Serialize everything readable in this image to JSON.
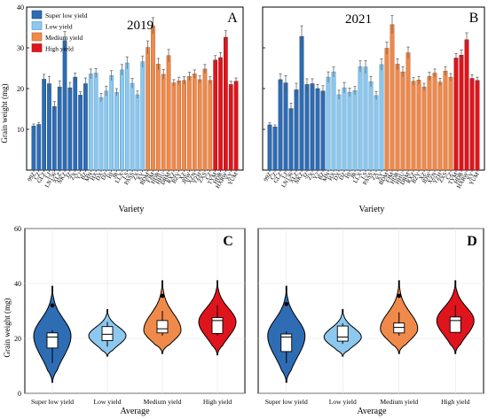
{
  "legend": {
    "items": [
      {
        "label": "Super low yield",
        "color": "#2e6db4"
      },
      {
        "label": "Low yield",
        "color": "#8cc8ef"
      },
      {
        "label": "Medium yield",
        "color": "#f08a4b"
      },
      {
        "label": "High yield",
        "color": "#e0141c"
      }
    ]
  },
  "panels": {
    "A": {
      "letter": "A",
      "year": "2019"
    },
    "B": {
      "letter": "B",
      "year": "2021"
    },
    "C": {
      "letter": "C"
    },
    "D": {
      "letter": "D"
    }
  },
  "top_ylabel": "Grain weight (mg)",
  "top_xlabel": "Variety",
  "bottom_ylabel": "Grain weight (mg)",
  "bottom_xlabel": "Average",
  "chart_data": [
    {
      "panel": "A",
      "type": "bar",
      "title": "2019",
      "xlabel": "Variety",
      "ylabel": "Grain weight (mg)",
      "ylim": [
        0,
        40
      ],
      "yticks": [
        10,
        20,
        30,
        40
      ],
      "categories": [
        "99Z",
        "CZ",
        "GLZ",
        "LJ",
        "LN136",
        "XLZ",
        "NKZ",
        "JZ",
        "ZX",
        "Y2",
        "BZ",
        "MN",
        "HX",
        "DX",
        "DZ",
        "HI",
        "JR",
        "LLX",
        "LS",
        "PASS",
        "ZX",
        "XY",
        "BDM",
        "FJM",
        "HDR",
        "HHU",
        "DRM",
        "RXZ",
        "BZY",
        "XZ",
        "JDW",
        "XZN",
        "YZH",
        "ZXS",
        "CZ",
        "TYM",
        "HDR",
        "HXRW",
        "XY",
        "YUM"
      ],
      "category_groups": [
        0,
        0,
        0,
        0,
        0,
        0,
        0,
        0,
        0,
        0,
        0,
        1,
        1,
        1,
        1,
        1,
        1,
        1,
        1,
        1,
        1,
        1,
        2,
        2,
        2,
        2,
        2,
        2,
        2,
        2,
        2,
        2,
        2,
        2,
        2,
        3,
        3,
        3,
        3,
        3
      ],
      "values": [
        10.8,
        11.2,
        22.3,
        21.2,
        15.6,
        20.4,
        31.8,
        20.2,
        22.8,
        18.4,
        21.2,
        23.6,
        23.8,
        17.8,
        19.4,
        23.2,
        19.1,
        24.6,
        26.3,
        21.3,
        18.5,
        26.6,
        30.1,
        35.4,
        26.0,
        23.5,
        28.1,
        21.4,
        21.9,
        22.0,
        23.0,
        23.6,
        22.2,
        24.8,
        22.0,
        27.0,
        27.6,
        32.6,
        21.0,
        21.8
      ],
      "errors": [
        0.5,
        0.5,
        1.2,
        1.8,
        1.2,
        1.5,
        2.2,
        1.3,
        1.0,
        0.8,
        1.4,
        1.2,
        1.1,
        1.0,
        1.2,
        1.2,
        0.9,
        1.3,
        1.5,
        1.2,
        0.9,
        1.4,
        1.6,
        2.0,
        1.4,
        1.2,
        1.5,
        0.8,
        0.9,
        0.9,
        1.0,
        1.0,
        0.9,
        1.1,
        0.9,
        1.1,
        1.2,
        1.6,
        0.8,
        0.8
      ]
    },
    {
      "panel": "B",
      "type": "bar",
      "title": "2021",
      "xlabel": "Variety",
      "ylabel": "",
      "ylim": [
        0,
        40
      ],
      "yticks": [
        10,
        20,
        30,
        40
      ],
      "categories": [
        "99Z",
        "CZ",
        "GLZ",
        "LJ",
        "LN136",
        "XLZ",
        "NKZ",
        "JZ",
        "ZX",
        "Y2",
        "BZ",
        "MN",
        "HX",
        "DX",
        "DZ",
        "HI",
        "JR",
        "LLX",
        "LS",
        "PASS",
        "ZX",
        "XY",
        "BDM",
        "FJM",
        "HDR",
        "HHU",
        "DRM",
        "RXZ",
        "BZY",
        "XZ",
        "JDW",
        "XZN",
        "YZH",
        "ZXS",
        "CZ",
        "TYM",
        "HDR",
        "HXRW",
        "XY",
        "YUM"
      ],
      "category_groups": [
        0,
        0,
        0,
        0,
        0,
        0,
        0,
        0,
        0,
        0,
        0,
        1,
        1,
        1,
        1,
        1,
        1,
        1,
        1,
        1,
        1,
        1,
        2,
        2,
        2,
        2,
        2,
        2,
        2,
        2,
        2,
        2,
        2,
        2,
        2,
        3,
        3,
        3,
        3,
        3
      ],
      "values": [
        11.1,
        10.6,
        22.2,
        21.4,
        15.1,
        19.7,
        32.8,
        21.0,
        21.2,
        20.0,
        19.4,
        22.8,
        24.1,
        18.5,
        20.2,
        19.1,
        19.5,
        25.4,
        25.3,
        21.7,
        18.3,
        25.9,
        29.9,
        35.7,
        26.0,
        24.1,
        28.8,
        21.8,
        22.1,
        20.4,
        23.0,
        23.8,
        21.6,
        24.3,
        22.8,
        27.5,
        28.2,
        32.0,
        22.5,
        22.0
      ],
      "errors": [
        0.5,
        0.5,
        1.4,
        1.8,
        1.3,
        1.6,
        2.6,
        1.4,
        1.2,
        1.0,
        1.3,
        1.3,
        1.2,
        1.1,
        1.3,
        1.0,
        1.0,
        1.4,
        1.6,
        1.3,
        1.0,
        1.4,
        1.5,
        2.2,
        1.3,
        1.2,
        1.4,
        0.9,
        0.9,
        0.9,
        1.0,
        1.0,
        0.9,
        1.1,
        0.9,
        1.1,
        1.3,
        1.7,
        0.9,
        0.8
      ]
    },
    {
      "panel": "C",
      "type": "violin",
      "xlabel": "Average",
      "ylabel": "Grain weight (mg)",
      "ylim": [
        0,
        60
      ],
      "yticks": [
        0,
        20,
        40,
        60
      ],
      "categories": [
        "Super low yield",
        "Low yield",
        "Medium yield",
        "High yield"
      ],
      "series": [
        {
          "group": "Super low yield",
          "min": 11,
          "q1": 16.5,
          "median": 20.5,
          "q3": 22,
          "max": 23,
          "outlier": 32,
          "violin_min": 4,
          "violin_max": 39,
          "mode": 21
        },
        {
          "group": "Low yield",
          "min": 17,
          "q1": 19.2,
          "median": 21.5,
          "q3": 24.3,
          "max": 26,
          "violin_min": 13.5,
          "violin_max": 30.5,
          "mode": 21
        },
        {
          "group": "Medium yield",
          "min": 21,
          "q1": 22,
          "median": 23.5,
          "q3": 26.5,
          "max": 30,
          "outlier": 35.5,
          "violin_min": 14.5,
          "violin_max": 41,
          "mode": 23
        },
        {
          "group": "High yield",
          "min": 21,
          "q1": 21.8,
          "median": 26.5,
          "q3": 27.6,
          "max": 32,
          "violin_min": 14,
          "violin_max": 41,
          "mode": 26
        }
      ]
    },
    {
      "panel": "D",
      "type": "violin",
      "xlabel": "Average",
      "ylabel": "",
      "ylim": [
        0,
        60
      ],
      "yticks": [
        0,
        20,
        40,
        60
      ],
      "categories": [
        "Super low yield",
        "Low yield",
        "Medium yield",
        "High yield"
      ],
      "series": [
        {
          "group": "Super low yield",
          "min": 11,
          "q1": 15.2,
          "median": 20.5,
          "q3": 21.6,
          "max": 22.5,
          "outlier": 32.5,
          "violin_min": 4,
          "violin_max": 39,
          "mode": 21
        },
        {
          "group": "Low yield",
          "min": 18,
          "q1": 19,
          "median": 20.5,
          "q3": 24.5,
          "max": 25.5,
          "violin_min": 13.5,
          "violin_max": 30.5,
          "mode": 20.5
        },
        {
          "group": "Medium yield",
          "min": 21,
          "q1": 22,
          "median": 24,
          "q3": 25.6,
          "max": 29.5,
          "outlier": 35.5,
          "violin_min": 14.5,
          "violin_max": 41,
          "mode": 23.5
        },
        {
          "group": "High yield",
          "min": 22,
          "q1": 22.2,
          "median": 26.5,
          "q3": 27.8,
          "max": 32,
          "violin_min": 14.5,
          "violin_max": 41,
          "mode": 26.5
        }
      ]
    }
  ]
}
